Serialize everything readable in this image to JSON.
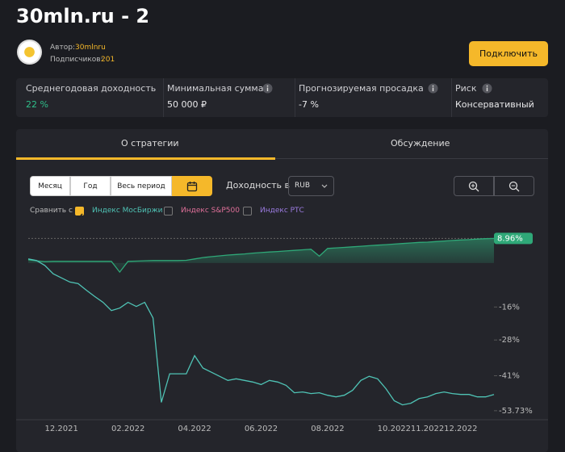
{
  "header": {
    "title": "30mln.ru - 2",
    "author_label": "Автор:",
    "author": "30mlnru",
    "subscribers_label": "Подписчиков:",
    "subscribers": "201",
    "connect_button": "Подключить"
  },
  "stats": [
    {
      "label": "Среднегодовая доходность",
      "value": "22 %"
    },
    {
      "label": "Минимальная сумма",
      "value": "50 000 ₽"
    },
    {
      "label": "Прогнозируемая просадка",
      "value": "-7 %"
    },
    {
      "label": "Риск",
      "value": "Консервативный"
    }
  ],
  "tabs": [
    "О стратегии",
    "Обсуждение"
  ],
  "controls": {
    "periods": [
      "Месяц",
      "Год",
      "Весь период"
    ],
    "yield_label": "Доходность в",
    "currency": "RUB",
    "compare_label": "Сравнить с",
    "compare": [
      {
        "name": "Индекс МосБиржи",
        "checked": true,
        "color": "#4fc3b5"
      },
      {
        "name": "Индекс S&P500",
        "checked": false,
        "color": "#e0709a"
      },
      {
        "name": "Индекс РТС",
        "checked": false,
        "color": "#9b7be0"
      }
    ]
  },
  "chart_data": {
    "type": "line",
    "categories": [
      null,
      null,
      null,
      null,
      "12.2021",
      null,
      null,
      null,
      null,
      null,
      null,
      null,
      "02.2022",
      null,
      null,
      null,
      null,
      null,
      null,
      null,
      "04.2022",
      null,
      null,
      null,
      null,
      null,
      null,
      null,
      "06.2022",
      null,
      null,
      null,
      null,
      null,
      null,
      null,
      "08.2022",
      null,
      null,
      null,
      null,
      null,
      null,
      null,
      "10.2022",
      null,
      null,
      null,
      "11.2022",
      null,
      null,
      null,
      "12.2022",
      null,
      null,
      null,
      null
    ],
    "series": [
      {
        "color": "#2fa878",
        "values": [
          1.2,
          0.8,
          0.5,
          0.6,
          0.6,
          0.6,
          0.6,
          0.6,
          0.6,
          0.6,
          0.6,
          -3.3,
          0.6,
          0.7,
          0.8,
          0.9,
          0.9,
          0.9,
          0.9,
          1.0,
          1.5,
          2.0,
          2.3,
          2.6,
          2.9,
          3.1,
          3.3,
          3.6,
          3.8,
          4.0,
          4.2,
          4.4,
          4.6,
          4.8,
          5.0,
          2.5,
          5.3,
          5.5,
          5.7,
          5.9,
          6.1,
          6.3,
          6.5,
          6.7,
          6.9,
          7.1,
          7.3,
          7.5,
          7.6,
          7.8,
          8.0,
          8.2,
          8.4,
          8.5,
          8.7,
          8.85,
          8.96
        ]
      },
      {
        "color": "#4fc3b5",
        "values": [
          1.5,
          0.9,
          -0.9,
          -3.9,
          -5.4,
          -6.9,
          -7.5,
          -9.9,
          -12.2,
          -14.3,
          -17.3,
          -16.4,
          -14.3,
          -15.8,
          -14.3,
          -20,
          -50.7,
          -40.3,
          -40.3,
          -40.3,
          -33.7,
          -38.2,
          -39.7,
          -41.2,
          -42.7,
          -42.1,
          -42.7,
          -43.3,
          -44.2,
          -42.7,
          -43.3,
          -44.5,
          -47.2,
          -46.9,
          -47.5,
          -47.2,
          -48.1,
          -48.7,
          -48.1,
          -46.3,
          -42.7,
          -41.2,
          -42.1,
          -45.7,
          -50.1,
          -51.6,
          -51.0,
          -49.3,
          -48.7,
          -47.5,
          -46.9,
          -47.5,
          -47.8,
          -47.8,
          -48.7,
          -48.7,
          -47.8
        ]
      }
    ],
    "ylim": [
      -57,
      12
    ],
    "yticks": [
      {
        "value": -16,
        "label": "-16%"
      },
      {
        "value": -28,
        "label": "-28%"
      },
      {
        "value": -41,
        "label": "-41%"
      },
      {
        "value": -53.73,
        "label": "-53.73%"
      }
    ],
    "current": {
      "value": 8.96,
      "label": "8.96%"
    }
  }
}
